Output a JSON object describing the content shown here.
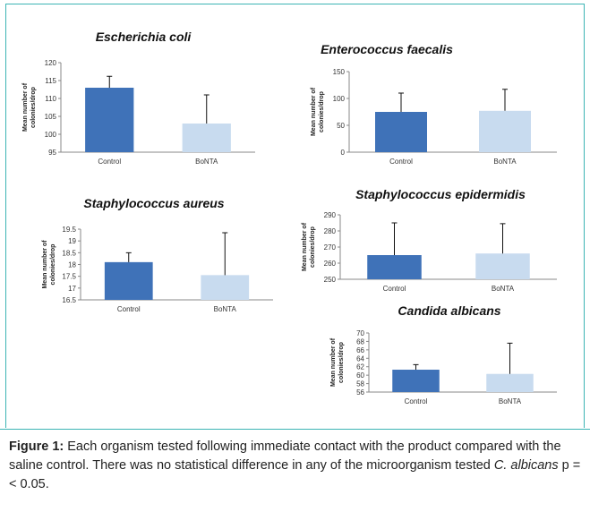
{
  "chart_data": [
    {
      "type": "bar",
      "title": "Escherichia coli",
      "ylabel": [
        "Mean number of",
        "colonies/drop"
      ],
      "categories": [
        "Control",
        "BoNTA"
      ],
      "values": [
        113,
        103
      ],
      "errors": [
        3.2,
        8
      ],
      "colors": [
        "#3f72b8",
        "#c8dbef"
      ],
      "ylim": [
        95,
        120
      ],
      "yticks": [
        95,
        100,
        105,
        110,
        115,
        120
      ]
    },
    {
      "type": "bar",
      "title": "Enterococcus faecalis",
      "ylabel": [
        "Mean number of",
        "colonies/drop"
      ],
      "categories": [
        "Control",
        "BoNTA"
      ],
      "values": [
        75,
        77
      ],
      "errors": [
        35,
        40
      ],
      "colors": [
        "#3f72b8",
        "#c8dbef"
      ],
      "ylim": [
        0,
        150
      ],
      "yticks": [
        0,
        50,
        100,
        150
      ]
    },
    {
      "type": "bar",
      "title": "Staphylococcus aureus",
      "ylabel": [
        "Mean number of",
        "colonies/drop"
      ],
      "categories": [
        "Control",
        "BoNTA"
      ],
      "values": [
        18.1,
        17.55
      ],
      "errors": [
        0.4,
        1.8
      ],
      "colors": [
        "#3f72b8",
        "#c8dbef"
      ],
      "ylim": [
        16.5,
        19.5
      ],
      "yticks": [
        16.5,
        17,
        17.5,
        18,
        18.5,
        19,
        19.5
      ]
    },
    {
      "type": "bar",
      "title": "Staphylococcus epidermidis",
      "ylabel": [
        "Mean number of",
        "colonies/drop"
      ],
      "categories": [
        "Control",
        "BoNTA"
      ],
      "values": [
        265,
        266
      ],
      "errors": [
        20,
        18.5
      ],
      "colors": [
        "#3f72b8",
        "#c8dbef"
      ],
      "ylim": [
        250,
        290
      ],
      "yticks": [
        250,
        260,
        270,
        280,
        290
      ]
    },
    {
      "type": "bar",
      "title": "Candida albicans",
      "ylabel": [
        "Mean number of",
        "colonies/drop"
      ],
      "categories": [
        "Control",
        "BoNTA"
      ],
      "values": [
        61.3,
        60.3
      ],
      "errors": [
        1.2,
        7.3
      ],
      "colors": [
        "#3f72b8",
        "#c8dbef"
      ],
      "ylim": [
        56,
        70
      ],
      "yticks": [
        56,
        58,
        60,
        62,
        64,
        66,
        68,
        70
      ]
    }
  ],
  "caption": {
    "label": "Figure 1:",
    "text": "Each organism tested following immediate contact with the product compared with the saline control. There was no statistical difference in any of the microorganism tested",
    "species": "C. albicans",
    "stat": "p = < 0.05."
  }
}
